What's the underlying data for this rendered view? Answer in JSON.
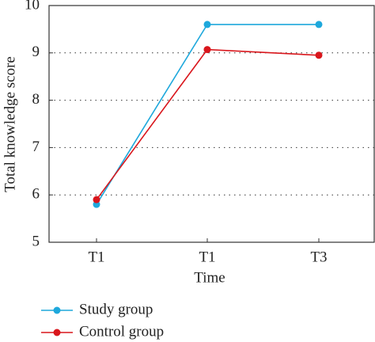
{
  "chart_data": {
    "type": "line",
    "x_label": "Time",
    "y_label": "Total knowledge score",
    "categories": [
      "T1",
      "T1",
      "T3"
    ],
    "series": [
      {
        "name": "Study group",
        "color": "#1ea8dc",
        "values": [
          5.8,
          9.6,
          9.6
        ]
      },
      {
        "name": "Control group",
        "color": "#d9161c",
        "values": [
          5.9,
          9.07,
          8.95
        ]
      }
    ],
    "ylim": [
      5,
      10
    ],
    "yticks": [
      5,
      6,
      7,
      8,
      9,
      10
    ],
    "grid": true,
    "legend": "bottom"
  }
}
